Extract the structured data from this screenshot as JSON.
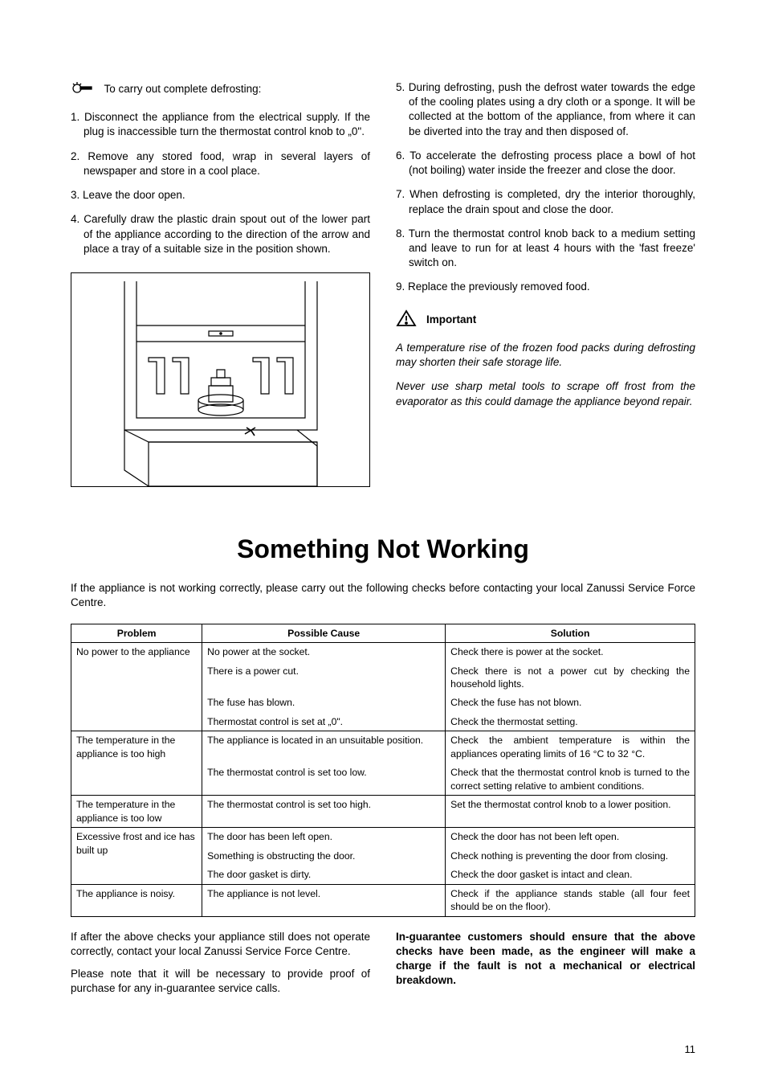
{
  "left": {
    "intro": "To carry out complete defrosting:",
    "steps": [
      "1. Disconnect the appliance from the electrical supply. If the plug is inaccessible turn the thermostat control knob to „0\".",
      "2. Remove any stored food, wrap in several layers of newspaper and store in a cool place.",
      "3. Leave the door open.",
      "4. Carefully draw the plastic drain spout out of the lower part of the appliance according to the direction of the arrow and place a tray of a suitable size in the position shown."
    ]
  },
  "right": {
    "steps": [
      "5. During defrosting, push the defrost water towards the edge of the cooling plates using a dry cloth or a sponge. It will be collected at the bottom of the appliance, from where it can be diverted into the tray and then disposed of.",
      "6. To accelerate the defrosting process place a bowl of hot (not boiling) water inside the freezer and close the door.",
      "7. When defrosting is completed, dry the interior thoroughly, replace the drain spout and close the door.",
      "8. Turn the thermostat control knob back to a medium setting and leave to run for at least 4 hours with the 'fast freeze' switch on.",
      "9. Replace the previously removed food."
    ],
    "important_label": "Important",
    "italic1": "A temperature rise of the frozen food packs during defrosting may shorten their safe storage life.",
    "italic2": "Never use sharp metal tools to scrape off frost from the evaporator as this could damage the appliance beyond repair."
  },
  "section_title": "Something Not Working",
  "section_intro": "If the appliance is not working correctly, please carry out the following checks before contacting your local Zanussi Service Force Centre.",
  "table": {
    "headers": [
      "Problem",
      "Possible Cause",
      "Solution"
    ],
    "groups": [
      {
        "problem": "No power to the appliance",
        "rows": [
          {
            "cause": "No power at the socket.",
            "solution": "Check there is power at the socket."
          },
          {
            "cause": "There is a power cut.",
            "solution": "Check there is not a power cut by checking the household lights."
          },
          {
            "cause": "The fuse has blown.",
            "solution": "Check the fuse has not blown."
          },
          {
            "cause": "Thermostat control is set at „0\".",
            "solution": "Check the thermostat setting."
          }
        ]
      },
      {
        "problem": "The temperature in the appliance is too high",
        "rows": [
          {
            "cause": "The appliance is located in an unsuitable position.",
            "solution": "Check the ambient temperature is within the appliances operating limits of 16 °C to 32 °C."
          },
          {
            "cause": "The thermostat control is set too low.",
            "solution": "Check that the thermostat control knob is turned to the correct setting relative to ambient conditions."
          }
        ]
      },
      {
        "problem": "The temperature in the appliance is too low",
        "rows": [
          {
            "cause": "The thermostat control is set too high.",
            "solution": "Set the thermostat control knob to a lower position."
          }
        ]
      },
      {
        "problem": "Excessive frost and ice has built up",
        "rows": [
          {
            "cause": "The door has been left open.",
            "solution": "Check the door has not been left open."
          },
          {
            "cause": "Something is obstructing the door.",
            "solution": "Check nothing is preventing the door from closing."
          },
          {
            "cause": "The door gasket is dirty.",
            "solution": "Check the door gasket is intact and clean."
          }
        ]
      },
      {
        "problem": "The appliance is noisy.",
        "rows": [
          {
            "cause": "The appliance is not level.",
            "solution": "Check if the appliance stands stable (all four feet should be on the floor)."
          }
        ]
      }
    ]
  },
  "bottom_left": {
    "p1": " If after the above checks your appliance still does not operate correctly, contact your local Zanussi Service Force Centre.",
    "p2": "Please note that it will be necessary to provide proof of purchase for any in-guarantee service calls."
  },
  "bottom_right": {
    "p1": "In-guarantee customers should ensure that the above checks have been made, as the engineer will make a charge if the fault is not a mechanical or electrical breakdown."
  },
  "page_number": "11"
}
